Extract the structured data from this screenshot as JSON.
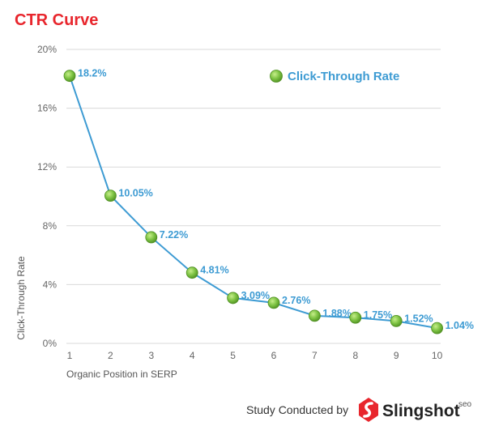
{
  "chart_data": {
    "type": "line",
    "title": "CTR Curve",
    "xlabel": "Organic Position in SERP",
    "ylabel": "Click-Through Rate",
    "categories": [
      "1",
      "2",
      "3",
      "4",
      "5",
      "6",
      "7",
      "8",
      "9",
      "10"
    ],
    "series": [
      {
        "name": "Click-Through Rate",
        "values": [
          18.2,
          10.05,
          7.22,
          4.81,
          3.09,
          2.76,
          1.88,
          1.75,
          1.52,
          1.04
        ],
        "labels": [
          "18.2%",
          "10.05%",
          "7.22%",
          "4.81%",
          "3.09%",
          "2.76%",
          "1.88%",
          "1.75%",
          "1.52%",
          "1.04%"
        ]
      }
    ],
    "ylim": [
      0,
      20
    ],
    "yticks": [
      "0%",
      "4%",
      "8%",
      "12%",
      "16%",
      "20%"
    ],
    "grid": true,
    "legend_position": "top-right",
    "colors": {
      "line": "#3d9bd3",
      "marker": "#7cc242",
      "title": "#e8262d",
      "labels": "#3d9bd3"
    }
  },
  "footer": {
    "credit_text": "Study Conducted by",
    "brand_name": "Slingshot",
    "brand_suffix": "seo"
  }
}
